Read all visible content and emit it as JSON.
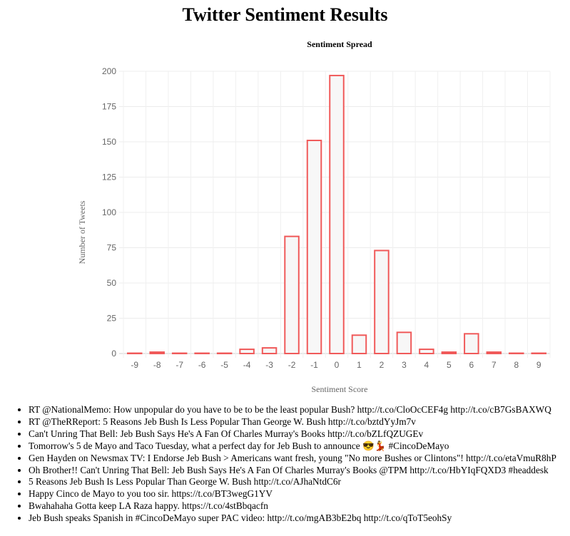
{
  "page": {
    "title": "Twitter Sentiment Results"
  },
  "chart_data": {
    "type": "bar",
    "title": "Sentiment Spread",
    "xlabel": "Sentiment Score",
    "ylabel": "Number of Tweets",
    "categories": [
      "-9",
      "-8",
      "-7",
      "-6",
      "-5",
      "-4",
      "-3",
      "-2",
      "-1",
      "0",
      "1",
      "2",
      "3",
      "4",
      "5",
      "6",
      "7",
      "8",
      "9"
    ],
    "values": [
      0,
      1,
      0,
      0,
      0,
      3,
      4,
      83,
      151,
      197,
      13,
      73,
      15,
      3,
      1,
      14,
      1,
      0,
      0
    ],
    "ylim": [
      0,
      200
    ],
    "yticks": [
      0,
      25,
      50,
      75,
      100,
      125,
      150,
      175,
      200
    ],
    "grid": true,
    "legend": "none",
    "bar_border_color": "#f05a5a",
    "bar_fill_color": "#f7f7f7"
  },
  "tweets": [
    "RT @NationalMemo: How unpopular do you have to be to be the least popular Bush? http://t.co/CloOcCEF4g http://t.co/cB7GsBAXWQ",
    "RT @TheRReport: 5 Reasons Jeb Bush Is Less Popular Than George W. Bush http://t.co/bztdYyJm7v",
    "Can't Unring That Bell: Jeb Bush Says He's A Fan Of Charles Murray's Books http://t.co/bZLfQZUGEv",
    "Tomorrow's 5 de Mayo and Taco Tuesday, what a perfect day for Jeb Bush to announce 😎💃 #CincoDeMayo",
    "Gen Hayden on Newsmax TV: I Endorse Jeb Bush > Americans want fresh, young \"No more Bushes or Clintons\"! http://t.co/etaVmuR8hP",
    "Oh Brother!! Can't Unring That Bell: Jeb Bush Says He's A Fan Of Charles Murray's Books @TPM http://t.co/HbYIqFQXD3 #headdesk",
    "5 Reasons Jeb Bush Is Less Popular Than George W. Bush http://t.co/AJhaNtdC6r",
    "Happy Cinco de Mayo to you too sir. https://t.co/BT3wegG1YV",
    "Bwahahaha Gotta keep LA Raza happy. https://t.co/4stBbqacfn",
    "Jeb Bush speaks Spanish in #CincoDeMayo super PAC video: http://t.co/mgAB3bE2bq http://t.co/qToT5eohSy"
  ]
}
